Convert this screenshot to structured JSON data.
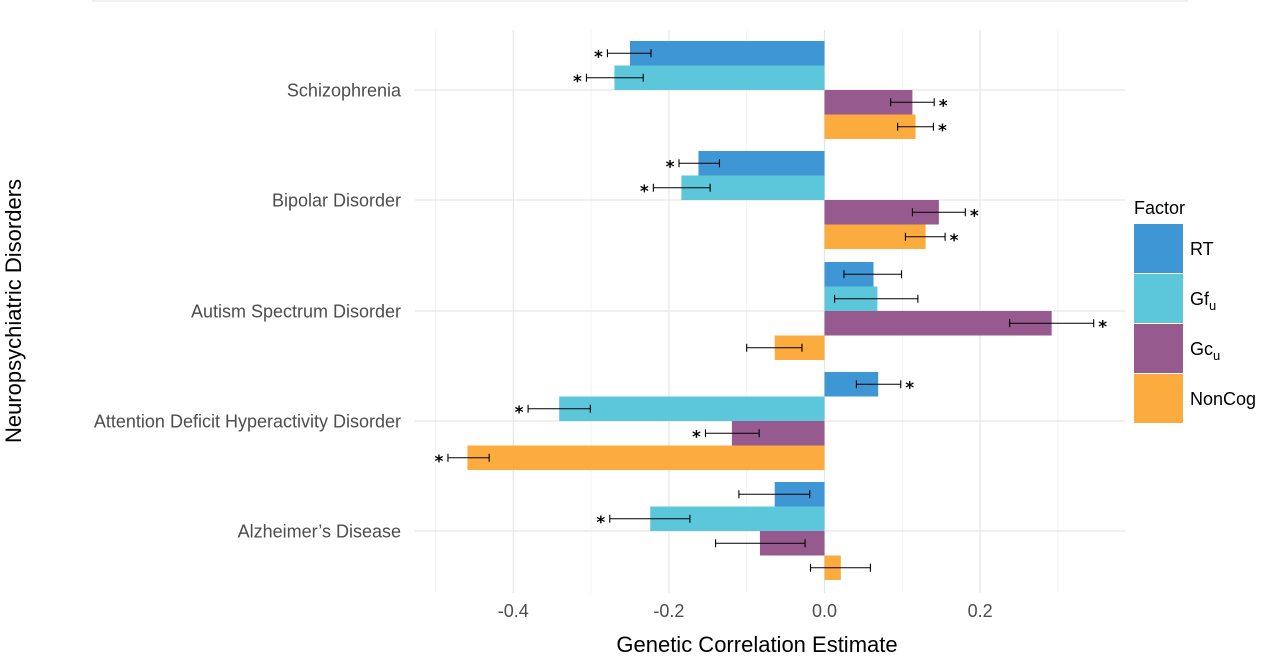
{
  "chart_data": {
    "type": "bar",
    "orientation": "horizontal",
    "xlabel": "Genetic Correlation Estimate",
    "ylabel": "Neuropsychiatric Disorders",
    "xlim": [
      -0.53,
      0.39
    ],
    "xticks": [
      -0.4,
      -0.2,
      0.0,
      0.2
    ],
    "xtick_labels": [
      "-0.4",
      "-0.2",
      "0.0",
      "0.2"
    ],
    "grid": true,
    "legend": {
      "title": "Factor",
      "position": "right"
    },
    "categories": [
      "Schizophrenia",
      "Bipolar Disorder",
      "Autism Spectrum Disorder",
      "Attention Deficit Hyperactivity Disorder",
      "Alzheimer’s Disease"
    ],
    "series": [
      {
        "name": "RT",
        "label_main": "RT",
        "label_sub": "",
        "color": "#3F96D4",
        "values": [
          -0.25,
          -0.162,
          0.063,
          0.069,
          -0.064
        ],
        "ci_low": [
          -0.279,
          -0.187,
          0.025,
          0.041,
          -0.11
        ],
        "ci_high": [
          -0.223,
          -0.135,
          0.099,
          0.098,
          -0.019
        ],
        "significant": [
          true,
          true,
          false,
          true,
          false
        ]
      },
      {
        "name": "Gfu",
        "label_main": "Gf",
        "label_sub": "u",
        "color": "#5CC6DB",
        "values": [
          -0.27,
          -0.184,
          0.068,
          -0.341,
          -0.224
        ],
        "ci_low": [
          -0.306,
          -0.22,
          0.013,
          -0.381,
          -0.276
        ],
        "ci_high": [
          -0.233,
          -0.147,
          0.12,
          -0.301,
          -0.173
        ],
        "significant": [
          true,
          true,
          false,
          true,
          true
        ]
      },
      {
        "name": "Gcu",
        "label_main": "Gc",
        "label_sub": "u",
        "color": "#965A8F",
        "values": [
          0.113,
          0.147,
          0.292,
          -0.119,
          -0.083
        ],
        "ci_low": [
          0.085,
          0.113,
          0.238,
          -0.153,
          -0.14
        ],
        "ci_high": [
          0.141,
          0.181,
          0.346,
          -0.084,
          -0.025
        ],
        "significant": [
          true,
          true,
          true,
          true,
          false
        ]
      },
      {
        "name": "NonCog",
        "label_main": "NonCog",
        "label_sub": "",
        "color": "#FCAB3F",
        "values": [
          0.117,
          0.13,
          -0.064,
          -0.459,
          0.021
        ],
        "ci_low": [
          0.094,
          0.104,
          -0.1,
          -0.484,
          -0.018
        ],
        "ci_high": [
          0.14,
          0.155,
          -0.029,
          -0.431,
          0.059
        ],
        "significant": [
          true,
          true,
          false,
          true,
          false
        ]
      }
    ],
    "significance_marker": "*"
  }
}
